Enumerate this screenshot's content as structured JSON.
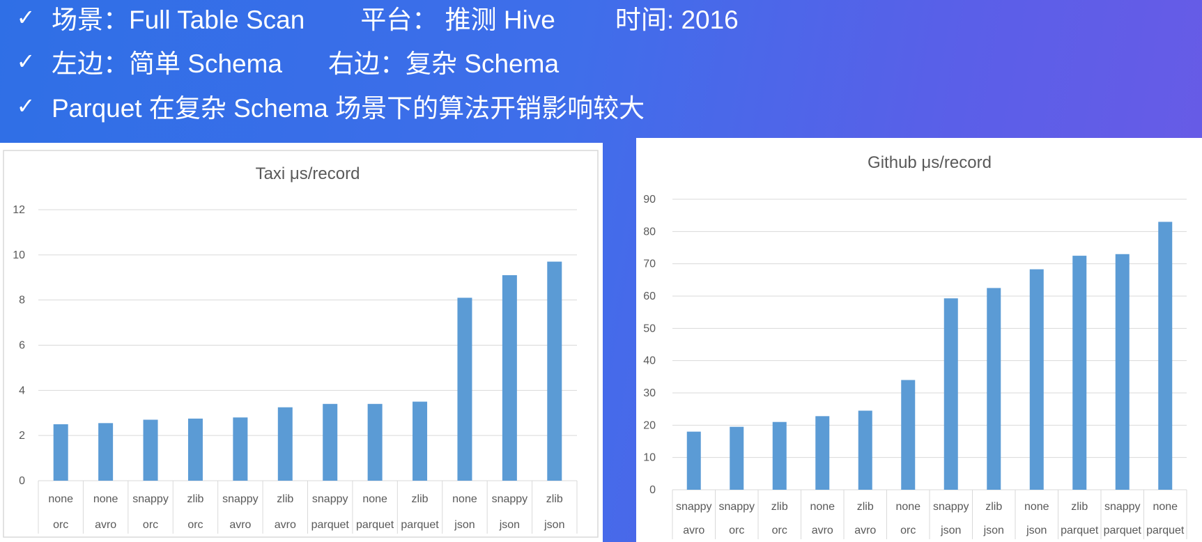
{
  "bullets": [
    {
      "check": "✓",
      "segments": [
        "场景：Full Table Scan",
        "平台： 推测 Hive",
        "时间: 2016"
      ]
    },
    {
      "check": "✓",
      "segments": [
        "左边：简单 Schema",
        "右边：复杂 Schema"
      ]
    },
    {
      "check": "✓",
      "segments": [
        "Parquet 在复杂 Schema 场景下的算法开销影响较大"
      ]
    }
  ],
  "colors": {
    "bar": "#5b9bd5",
    "grid": "#d9d9d9",
    "text": "#595959"
  },
  "chart_data": [
    {
      "type": "bar",
      "title": "Taxi μs/record",
      "xlabel": "",
      "ylabel": "",
      "ylim": [
        0,
        12
      ],
      "yticks": [
        0,
        2,
        4,
        6,
        8,
        10,
        12
      ],
      "grid": true,
      "legend": "none",
      "categories": [
        [
          "none",
          "orc"
        ],
        [
          "none",
          "avro"
        ],
        [
          "snappy",
          "orc"
        ],
        [
          "zlib",
          "orc"
        ],
        [
          "snappy",
          "avro"
        ],
        [
          "zlib",
          "avro"
        ],
        [
          "snappy",
          "parquet"
        ],
        [
          "none",
          "parquet"
        ],
        [
          "zlib",
          "parquet"
        ],
        [
          "none",
          "json"
        ],
        [
          "snappy",
          "json"
        ],
        [
          "zlib",
          "json"
        ]
      ],
      "values": [
        2.5,
        2.55,
        2.7,
        2.75,
        2.8,
        3.25,
        3.4,
        3.4,
        3.5,
        8.1,
        9.1,
        9.7
      ]
    },
    {
      "type": "bar",
      "title": "Github μs/record",
      "xlabel": "",
      "ylabel": "",
      "ylim": [
        0,
        90
      ],
      "yticks": [
        0,
        10,
        20,
        30,
        40,
        50,
        60,
        70,
        80,
        90
      ],
      "grid": true,
      "legend": "none",
      "categories": [
        [
          "snappy",
          "avro"
        ],
        [
          "snappy",
          "orc"
        ],
        [
          "zlib",
          "orc"
        ],
        [
          "none",
          "avro"
        ],
        [
          "zlib",
          "avro"
        ],
        [
          "none",
          "orc"
        ],
        [
          "snappy",
          "json"
        ],
        [
          "zlib",
          "json"
        ],
        [
          "none",
          "json"
        ],
        [
          "zlib",
          "parquet"
        ],
        [
          "snappy",
          "parquet"
        ],
        [
          "none",
          "parquet"
        ]
      ],
      "values": [
        18,
        19.5,
        21,
        22.8,
        24.5,
        34,
        59.3,
        62.5,
        68.3,
        72.5,
        73,
        83
      ]
    }
  ]
}
